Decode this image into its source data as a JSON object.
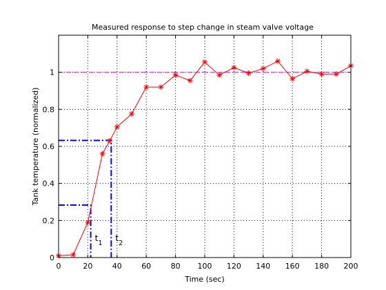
{
  "chart_data": {
    "type": "line",
    "title": "Measured response to step change in steam valve voltage",
    "xlabel": "Time (sec)",
    "ylabel": "Tank temperature (normalized)",
    "xlim": [
      0,
      200
    ],
    "ylim": [
      0,
      1.2
    ],
    "xticks": [
      0,
      20,
      40,
      60,
      80,
      100,
      120,
      140,
      160,
      180,
      200
    ],
    "xtick_labels": [
      "0",
      "20",
      "40",
      "60",
      "80",
      "100",
      "120",
      "140",
      "160",
      "180",
      "200"
    ],
    "yticks": [
      0,
      0.2,
      0.4,
      0.6,
      0.8,
      1
    ],
    "ytick_labels": [
      "0",
      "0.2",
      "0.4",
      "0.6",
      "0.8",
      "1"
    ],
    "grid": true,
    "colors": {
      "series": "#ff0000",
      "reference": "#ff00ff",
      "construction": "#0000ff"
    },
    "series": [
      {
        "marker": "asterisk",
        "line": "solid",
        "x": [
          0,
          10,
          20,
          30,
          35,
          40,
          50,
          60,
          70,
          80,
          90,
          100,
          110,
          120,
          130,
          140,
          150,
          160,
          170,
          180,
          190,
          200
        ],
        "y": [
          0.01,
          0.015,
          0.19,
          0.56,
          0.63,
          0.705,
          0.775,
          0.92,
          0.92,
          0.985,
          0.955,
          1.055,
          0.985,
          1.025,
          0.995,
          1.02,
          1.06,
          0.965,
          1.005,
          0.99,
          0.99,
          1.035
        ]
      }
    ],
    "reference_line": {
      "y": 1.0,
      "line": "dashed"
    },
    "annotations": [
      {
        "name": "t1",
        "label": "t",
        "subscript": "1",
        "x": 22,
        "y": 0.283
      },
      {
        "name": "t2",
        "label": "t",
        "subscript": "2",
        "x": 36,
        "y": 0.632
      }
    ]
  }
}
